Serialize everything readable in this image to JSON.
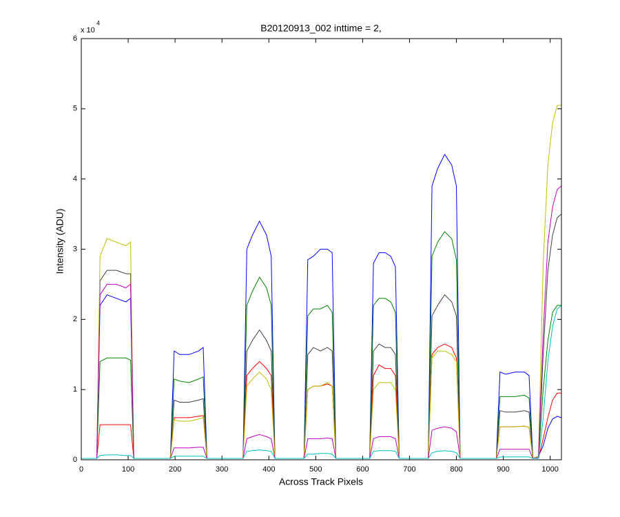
{
  "chart_data": {
    "type": "line",
    "title": "B20120913_002 inttime = 2,",
    "x_label": "Across Track Pixels",
    "y_label": "Intensity (ADU)",
    "y_multiplier": "x 10",
    "y_exponent": "4",
    "xlim": [
      0,
      1024
    ],
    "ylim": [
      0,
      6
    ],
    "xticks": [
      0,
      100,
      200,
      300,
      400,
      500,
      600,
      700,
      800,
      900,
      1000
    ],
    "yticks": [
      0,
      1,
      2,
      3,
      4,
      5,
      6
    ],
    "grid": false,
    "x": [
      0,
      33,
      40,
      55,
      75,
      95,
      105,
      112,
      190,
      198,
      210,
      230,
      250,
      260,
      268,
      345,
      353,
      365,
      380,
      395,
      405,
      413,
      475,
      483,
      495,
      510,
      525,
      535,
      543,
      615,
      623,
      635,
      648,
      660,
      670,
      678,
      740,
      748,
      760,
      775,
      790,
      800,
      808,
      885,
      893,
      905,
      925,
      945,
      955,
      963,
      975,
      985,
      995,
      1005,
      1015,
      1024
    ],
    "series": [
      {
        "color": "#0000ff",
        "values": [
          0.02,
          0.02,
          2.2,
          2.35,
          2.3,
          2.25,
          2.3,
          0.02,
          0.02,
          1.55,
          1.5,
          1.5,
          1.55,
          1.6,
          0.02,
          0.02,
          3.0,
          3.2,
          3.4,
          3.2,
          2.9,
          0.02,
          0.02,
          2.85,
          2.9,
          3.0,
          3.0,
          2.95,
          0.02,
          0.02,
          2.8,
          2.95,
          2.95,
          2.9,
          2.75,
          0.02,
          0.02,
          3.9,
          4.15,
          4.35,
          4.2,
          3.9,
          0.02,
          0.02,
          1.25,
          1.22,
          1.25,
          1.25,
          1.2,
          0.02,
          0.05,
          0.2,
          0.45,
          0.58,
          0.62,
          0.6
        ]
      },
      {
        "color": "#008000",
        "values": [
          0.02,
          0.02,
          1.4,
          1.45,
          1.45,
          1.45,
          1.42,
          0.02,
          0.02,
          1.15,
          1.12,
          1.1,
          1.15,
          1.18,
          0.02,
          0.02,
          2.2,
          2.4,
          2.6,
          2.45,
          2.2,
          0.02,
          0.02,
          2.05,
          2.15,
          2.15,
          2.2,
          2.1,
          0.02,
          0.02,
          2.2,
          2.3,
          2.3,
          2.25,
          2.1,
          0.02,
          0.02,
          2.9,
          3.1,
          3.25,
          3.15,
          2.85,
          0.02,
          0.02,
          0.9,
          0.9,
          0.9,
          0.92,
          0.88,
          0.02,
          0.03,
          1.0,
          1.7,
          2.1,
          2.2,
          2.2
        ]
      },
      {
        "color": "#404040",
        "values": [
          0.02,
          0.02,
          2.55,
          2.7,
          2.7,
          2.65,
          2.65,
          0.02,
          0.02,
          0.85,
          0.82,
          0.82,
          0.85,
          0.87,
          0.02,
          0.02,
          1.55,
          1.7,
          1.85,
          1.7,
          1.55,
          0.02,
          0.02,
          1.5,
          1.6,
          1.55,
          1.6,
          1.55,
          0.02,
          0.02,
          1.55,
          1.65,
          1.6,
          1.6,
          1.5,
          0.02,
          0.02,
          2.05,
          2.2,
          2.35,
          2.25,
          2.05,
          0.02,
          0.02,
          0.7,
          0.68,
          0.68,
          0.7,
          0.68,
          0.02,
          0.03,
          1.5,
          2.7,
          3.2,
          3.45,
          3.5
        ]
      },
      {
        "color": "#ff0000",
        "values": [
          0.02,
          0.02,
          0.5,
          0.5,
          0.5,
          0.5,
          0.5,
          0.02,
          0.02,
          0.6,
          0.6,
          0.6,
          0.62,
          0.63,
          0.02,
          0.02,
          1.2,
          1.3,
          1.4,
          1.3,
          1.2,
          0.02,
          0.02,
          1.0,
          1.05,
          1.05,
          1.08,
          1.05,
          0.02,
          0.02,
          1.2,
          1.35,
          1.3,
          1.3,
          1.2,
          0.02,
          0.02,
          1.5,
          1.6,
          1.65,
          1.6,
          1.45,
          0.02,
          0.02,
          0.47,
          0.47,
          0.47,
          0.48,
          0.46,
          0.02,
          0.02,
          0.3,
          0.6,
          0.85,
          0.95,
          0.95
        ]
      },
      {
        "color": "#bfbf00",
        "values": [
          0.02,
          0.02,
          2.9,
          3.15,
          3.1,
          3.05,
          3.1,
          0.02,
          0.02,
          0.57,
          0.55,
          0.55,
          0.58,
          0.6,
          0.02,
          0.02,
          1.05,
          1.15,
          1.25,
          1.15,
          1.0,
          0.02,
          0.02,
          1.0,
          1.05,
          1.05,
          1.1,
          1.05,
          0.02,
          0.02,
          1.0,
          1.1,
          1.1,
          1.1,
          1.0,
          0.02,
          0.02,
          1.45,
          1.55,
          1.55,
          1.5,
          1.4,
          0.02,
          0.02,
          0.47,
          0.47,
          0.47,
          0.48,
          0.46,
          0.02,
          0.05,
          2.8,
          4.2,
          4.8,
          5.05,
          5.05
        ]
      },
      {
        "color": "#bf00bf",
        "values": [
          0.02,
          0.02,
          2.35,
          2.5,
          2.5,
          2.45,
          2.5,
          0.02,
          0.02,
          0.17,
          0.17,
          0.17,
          0.18,
          0.18,
          0.02,
          0.02,
          0.3,
          0.33,
          0.36,
          0.33,
          0.3,
          0.02,
          0.02,
          0.3,
          0.3,
          0.3,
          0.31,
          0.3,
          0.02,
          0.02,
          0.3,
          0.33,
          0.33,
          0.33,
          0.3,
          0.02,
          0.02,
          0.42,
          0.45,
          0.47,
          0.45,
          0.4,
          0.02,
          0.02,
          0.15,
          0.15,
          0.15,
          0.15,
          0.15,
          0.02,
          0.03,
          1.8,
          3.1,
          3.6,
          3.85,
          3.9
        ]
      },
      {
        "color": "#00bfbf",
        "values": [
          0.02,
          0.02,
          0.06,
          0.07,
          0.07,
          0.06,
          0.06,
          0.02,
          0.02,
          0.05,
          0.05,
          0.05,
          0.05,
          0.05,
          0.02,
          0.02,
          0.12,
          0.13,
          0.14,
          0.13,
          0.12,
          0.02,
          0.02,
          0.08,
          0.08,
          0.09,
          0.09,
          0.08,
          0.02,
          0.02,
          0.12,
          0.13,
          0.13,
          0.13,
          0.12,
          0.02,
          0.02,
          0.1,
          0.12,
          0.13,
          0.12,
          0.1,
          0.02,
          0.02,
          0.04,
          0.04,
          0.04,
          0.04,
          0.04,
          0.02,
          0.02,
          0.6,
          1.4,
          1.9,
          2.15,
          2.2
        ]
      }
    ]
  }
}
